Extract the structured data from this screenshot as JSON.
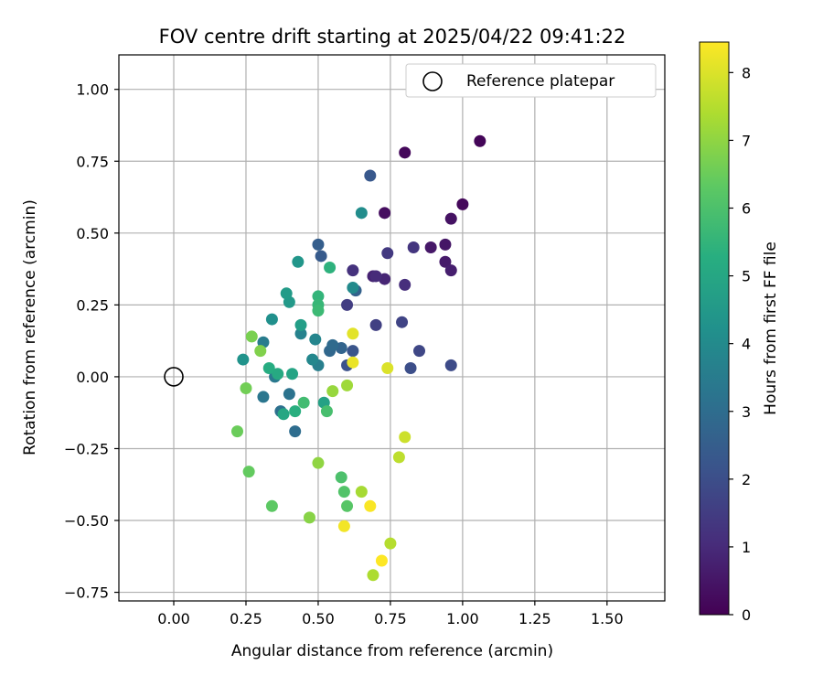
{
  "chart_data": {
    "type": "scatter",
    "title": "FOV centre drift starting at 2025/04/22 09:41:22",
    "xlabel": "Angular distance from reference (arcmin)",
    "ylabel": "Rotation from reference (arcmin)",
    "xlim": [
      -0.19,
      1.7
    ],
    "ylim": [
      -0.78,
      1.12
    ],
    "x_ticks": [
      0.0,
      0.25,
      0.5,
      0.75,
      1.0,
      1.25,
      1.5
    ],
    "x_tick_labels": [
      "0.00",
      "0.25",
      "0.50",
      "0.75",
      "1.00",
      "1.25",
      "1.50"
    ],
    "y_ticks": [
      -0.75,
      -0.5,
      -0.25,
      0.0,
      0.25,
      0.5,
      0.75,
      1.0
    ],
    "y_tick_labels": [
      "−0.75",
      "−0.50",
      "−0.25",
      "0.00",
      "0.25",
      "0.50",
      "0.75",
      "1.00"
    ],
    "grid": true,
    "legend": {
      "placement": "upper right",
      "entries": [
        {
          "label": "Reference platepar",
          "marker": "open-circle",
          "x": 0.0,
          "y": 0.0
        }
      ]
    },
    "colorbar": {
      "label": "Hours from first FF file",
      "colormap": "viridis",
      "range": [
        0,
        8.45
      ],
      "ticks": [
        0,
        1,
        2,
        3,
        4,
        5,
        6,
        7,
        8
      ],
      "tick_labels": [
        "0",
        "1",
        "2",
        "3",
        "4",
        "5",
        "6",
        "7",
        "8"
      ]
    },
    "points": [
      [
        1.06,
        0.82,
        0.1
      ],
      [
        0.8,
        0.78,
        0.15
      ],
      [
        1.0,
        0.6,
        0.2
      ],
      [
        0.73,
        0.57,
        0.3
      ],
      [
        0.96,
        0.55,
        0.4
      ],
      [
        0.94,
        0.46,
        0.5
      ],
      [
        0.89,
        0.45,
        0.55
      ],
      [
        0.94,
        0.4,
        0.6
      ],
      [
        0.96,
        0.37,
        0.7
      ],
      [
        0.69,
        0.35,
        0.8
      ],
      [
        0.73,
        0.34,
        0.9
      ],
      [
        0.7,
        0.35,
        1.0
      ],
      [
        0.8,
        0.32,
        1.1
      ],
      [
        0.62,
        0.37,
        1.2
      ],
      [
        0.83,
        0.45,
        1.3
      ],
      [
        0.74,
        0.43,
        1.4
      ],
      [
        0.6,
        0.25,
        1.5
      ],
      [
        0.7,
        0.18,
        1.6
      ],
      [
        0.79,
        0.19,
        1.7
      ],
      [
        0.85,
        0.09,
        1.8
      ],
      [
        0.96,
        0.04,
        1.9
      ],
      [
        0.82,
        0.03,
        2.0
      ],
      [
        0.6,
        0.04,
        2.1
      ],
      [
        0.62,
        0.09,
        2.2
      ],
      [
        0.68,
        0.7,
        2.3
      ],
      [
        0.51,
        0.42,
        2.4
      ],
      [
        0.5,
        0.46,
        2.5
      ],
      [
        0.63,
        0.3,
        2.6
      ],
      [
        0.58,
        0.1,
        2.7
      ],
      [
        0.54,
        0.09,
        2.8
      ],
      [
        0.55,
        0.11,
        2.9
      ],
      [
        0.42,
        -0.19,
        3.0
      ],
      [
        0.37,
        -0.12,
        3.1
      ],
      [
        0.4,
        -0.06,
        3.2
      ],
      [
        0.31,
        -0.07,
        3.3
      ],
      [
        0.35,
        0.0,
        3.4
      ],
      [
        0.31,
        0.12,
        3.5
      ],
      [
        0.5,
        0.04,
        3.6
      ],
      [
        0.44,
        0.15,
        3.7
      ],
      [
        0.49,
        0.13,
        3.8
      ],
      [
        0.48,
        0.06,
        3.9
      ],
      [
        0.62,
        0.31,
        4.0
      ],
      [
        0.65,
        0.57,
        4.1
      ],
      [
        0.34,
        0.2,
        4.2
      ],
      [
        0.24,
        0.06,
        4.3
      ],
      [
        0.43,
        0.4,
        4.4
      ],
      [
        0.4,
        0.26,
        4.5
      ],
      [
        0.39,
        0.29,
        4.6
      ],
      [
        0.44,
        0.18,
        4.7
      ],
      [
        0.52,
        -0.09,
        4.8
      ],
      [
        0.41,
        0.01,
        4.9
      ],
      [
        0.38,
        -0.13,
        5.0
      ],
      [
        0.36,
        0.01,
        5.1
      ],
      [
        0.33,
        0.03,
        5.2
      ],
      [
        0.42,
        -0.12,
        5.3
      ],
      [
        0.54,
        0.38,
        5.4
      ],
      [
        0.5,
        0.28,
        5.5
      ],
      [
        0.5,
        0.25,
        5.6
      ],
      [
        0.5,
        0.23,
        5.7
      ],
      [
        0.45,
        -0.09,
        5.8
      ],
      [
        0.53,
        -0.12,
        5.9
      ],
      [
        0.58,
        -0.35,
        6.0
      ],
      [
        0.59,
        -0.4,
        6.1
      ],
      [
        0.6,
        -0.45,
        6.2
      ],
      [
        0.34,
        -0.45,
        6.3
      ],
      [
        0.26,
        -0.33,
        6.4
      ],
      [
        0.22,
        -0.19,
        6.5
      ],
      [
        0.25,
        -0.04,
        6.6
      ],
      [
        0.27,
        0.14,
        6.7
      ],
      [
        0.3,
        0.09,
        6.8
      ],
      [
        0.47,
        -0.49,
        6.9
      ],
      [
        0.5,
        -0.3,
        7.0
      ],
      [
        0.55,
        -0.05,
        7.1
      ],
      [
        0.6,
        -0.03,
        7.2
      ],
      [
        0.65,
        -0.4,
        7.3
      ],
      [
        0.69,
        -0.69,
        7.4
      ],
      [
        0.75,
        -0.58,
        7.5
      ],
      [
        0.78,
        -0.28,
        7.6
      ],
      [
        0.8,
        -0.21,
        7.8
      ],
      [
        0.74,
        0.03,
        8.0
      ],
      [
        0.62,
        0.15,
        8.1
      ],
      [
        0.62,
        0.05,
        8.2
      ],
      [
        0.59,
        -0.52,
        8.3
      ],
      [
        0.68,
        -0.45,
        8.4
      ],
      [
        0.72,
        -0.64,
        8.45
      ]
    ]
  }
}
